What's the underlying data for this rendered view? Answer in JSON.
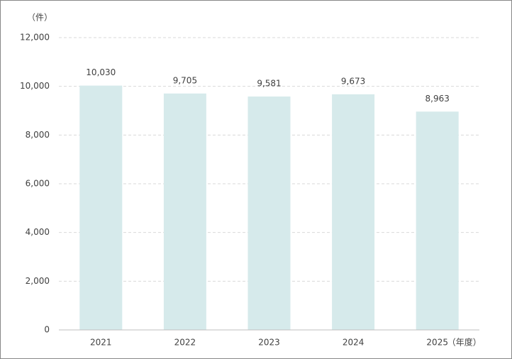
{
  "chart_data": {
    "type": "bar",
    "y_unit": "（件）",
    "x_unit": "（年度）",
    "categories": [
      "2021",
      "2022",
      "2023",
      "2024",
      "2025"
    ],
    "values": [
      10030,
      9705,
      9581,
      9673,
      8963
    ],
    "value_labels": [
      "10,030",
      "9,705",
      "9,581",
      "9,673",
      "8,963"
    ],
    "color": "#d6eaeb",
    "ylim": [
      0,
      12000
    ],
    "yticks": [
      0,
      {
        "value": 2000,
        "label": "2,000"
      },
      {
        "value": 4000,
        "label": "4,000"
      },
      {
        "value": 6000,
        "label": "6,000"
      },
      {
        "value": 8000,
        "label": "8,000"
      },
      {
        "value": 10000,
        "label": "10,000"
      },
      {
        "value": 12000,
        "label": "12,000"
      }
    ],
    "grid": true
  }
}
